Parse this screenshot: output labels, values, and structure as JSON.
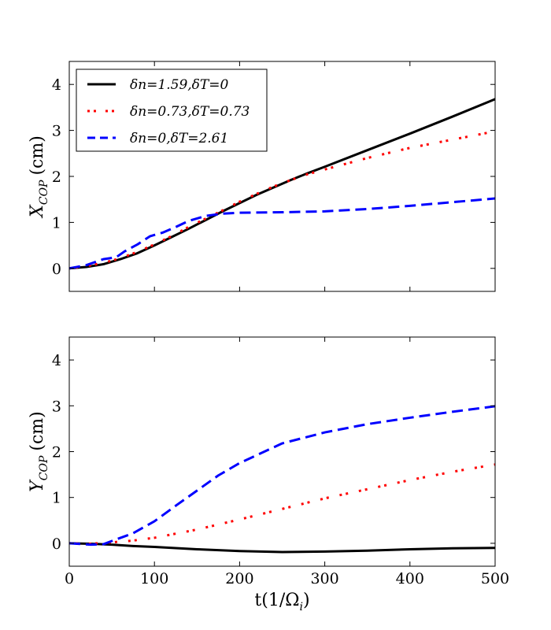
{
  "chart_data": [
    {
      "type": "line",
      "panel": "top",
      "ylabel": "X_COP (cm)",
      "ylabel_main": "X",
      "ylabel_sub": "COP",
      "ylabel_unit": "(cm)",
      "xlabel": "",
      "xlim": [
        0,
        500
      ],
      "ylim": [
        -0.5,
        4.5
      ],
      "xticks": [
        0,
        100,
        200,
        300,
        400,
        500
      ],
      "yticks": [
        0,
        1,
        2,
        3,
        4
      ],
      "yticks_labels": [
        "0",
        "1",
        "2",
        "3",
        "4"
      ],
      "show_xtick_labels": false,
      "legend_position": "top-left",
      "series": [
        {
          "name": "δn=1.59,δT=0",
          "color": "#000000",
          "style": "solid",
          "x": [
            0,
            20,
            40,
            60,
            80,
            100,
            120,
            140,
            160,
            180,
            200,
            220,
            240,
            260,
            280,
            300,
            350,
            400,
            450,
            500
          ],
          "y": [
            0.0,
            0.03,
            0.09,
            0.2,
            0.33,
            0.5,
            0.68,
            0.86,
            1.05,
            1.24,
            1.42,
            1.6,
            1.76,
            1.92,
            2.07,
            2.21,
            2.57,
            2.93,
            3.3,
            3.68
          ]
        },
        {
          "name": "δn=0.73,δT=0.73",
          "color": "#ff0000",
          "style": "dashdot",
          "x": [
            0,
            20,
            40,
            60,
            80,
            100,
            120,
            140,
            160,
            180,
            200,
            220,
            240,
            260,
            280,
            300,
            350,
            400,
            450,
            500
          ],
          "y": [
            0.0,
            0.05,
            0.12,
            0.22,
            0.36,
            0.52,
            0.7,
            0.9,
            1.08,
            1.26,
            1.45,
            1.62,
            1.78,
            1.92,
            2.05,
            2.15,
            2.4,
            2.62,
            2.8,
            2.98
          ]
        },
        {
          "name": "δn=0,δT=2.61",
          "color": "#0000ff",
          "style": "dashed",
          "x": [
            0,
            20,
            40,
            55,
            65,
            80,
            95,
            110,
            125,
            140,
            160,
            180,
            200,
            250,
            300,
            350,
            400,
            450,
            500
          ],
          "y": [
            0.0,
            0.07,
            0.2,
            0.24,
            0.37,
            0.52,
            0.7,
            0.78,
            0.9,
            1.03,
            1.14,
            1.19,
            1.21,
            1.22,
            1.24,
            1.29,
            1.36,
            1.44,
            1.52
          ]
        }
      ]
    },
    {
      "type": "line",
      "panel": "bottom",
      "ylabel": "Y_COP (cm)",
      "ylabel_main": "Y",
      "ylabel_sub": "COP",
      "ylabel_unit": "(cm)",
      "xlabel": "t(1/Ω_i)",
      "xlabel_main": "t(1/Ω",
      "xlabel_sub": "i",
      "xlabel_close": ")",
      "xlim": [
        0,
        500
      ],
      "ylim": [
        -0.5,
        4.5
      ],
      "xticks": [
        0,
        100,
        200,
        300,
        400,
        500
      ],
      "xticks_labels": [
        "0",
        "100",
        "200",
        "300",
        "400",
        "500"
      ],
      "yticks": [
        0,
        1,
        2,
        3,
        4
      ],
      "yticks_labels": [
        "0",
        "1",
        "2",
        "3",
        "4"
      ],
      "show_xtick_labels": true,
      "series": [
        {
          "name": "δn=1.59,δT=0",
          "color": "#000000",
          "style": "solid",
          "x": [
            0,
            25,
            50,
            75,
            100,
            150,
            200,
            250,
            300,
            350,
            400,
            450,
            500
          ],
          "y": [
            0.0,
            -0.01,
            -0.03,
            -0.06,
            -0.08,
            -0.13,
            -0.17,
            -0.19,
            -0.18,
            -0.16,
            -0.13,
            -0.11,
            -0.1
          ]
        },
        {
          "name": "δn=0.73,δT=0.73",
          "color": "#ff0000",
          "style": "dashdot",
          "x": [
            0,
            25,
            50,
            75,
            100,
            150,
            200,
            250,
            300,
            350,
            400,
            450,
            500
          ],
          "y": [
            0.0,
            -0.01,
            0.02,
            0.06,
            0.12,
            0.3,
            0.52,
            0.75,
            0.98,
            1.18,
            1.38,
            1.56,
            1.72
          ]
        },
        {
          "name": "δn=0,δT=2.61",
          "color": "#0000ff",
          "style": "dashed",
          "x": [
            0,
            25,
            40,
            50,
            75,
            100,
            125,
            150,
            175,
            200,
            250,
            300,
            350,
            400,
            450,
            500
          ],
          "y": [
            0.0,
            -0.03,
            -0.02,
            0.05,
            0.22,
            0.48,
            0.82,
            1.15,
            1.48,
            1.75,
            2.18,
            2.42,
            2.6,
            2.74,
            2.87,
            2.99
          ]
        }
      ]
    }
  ]
}
